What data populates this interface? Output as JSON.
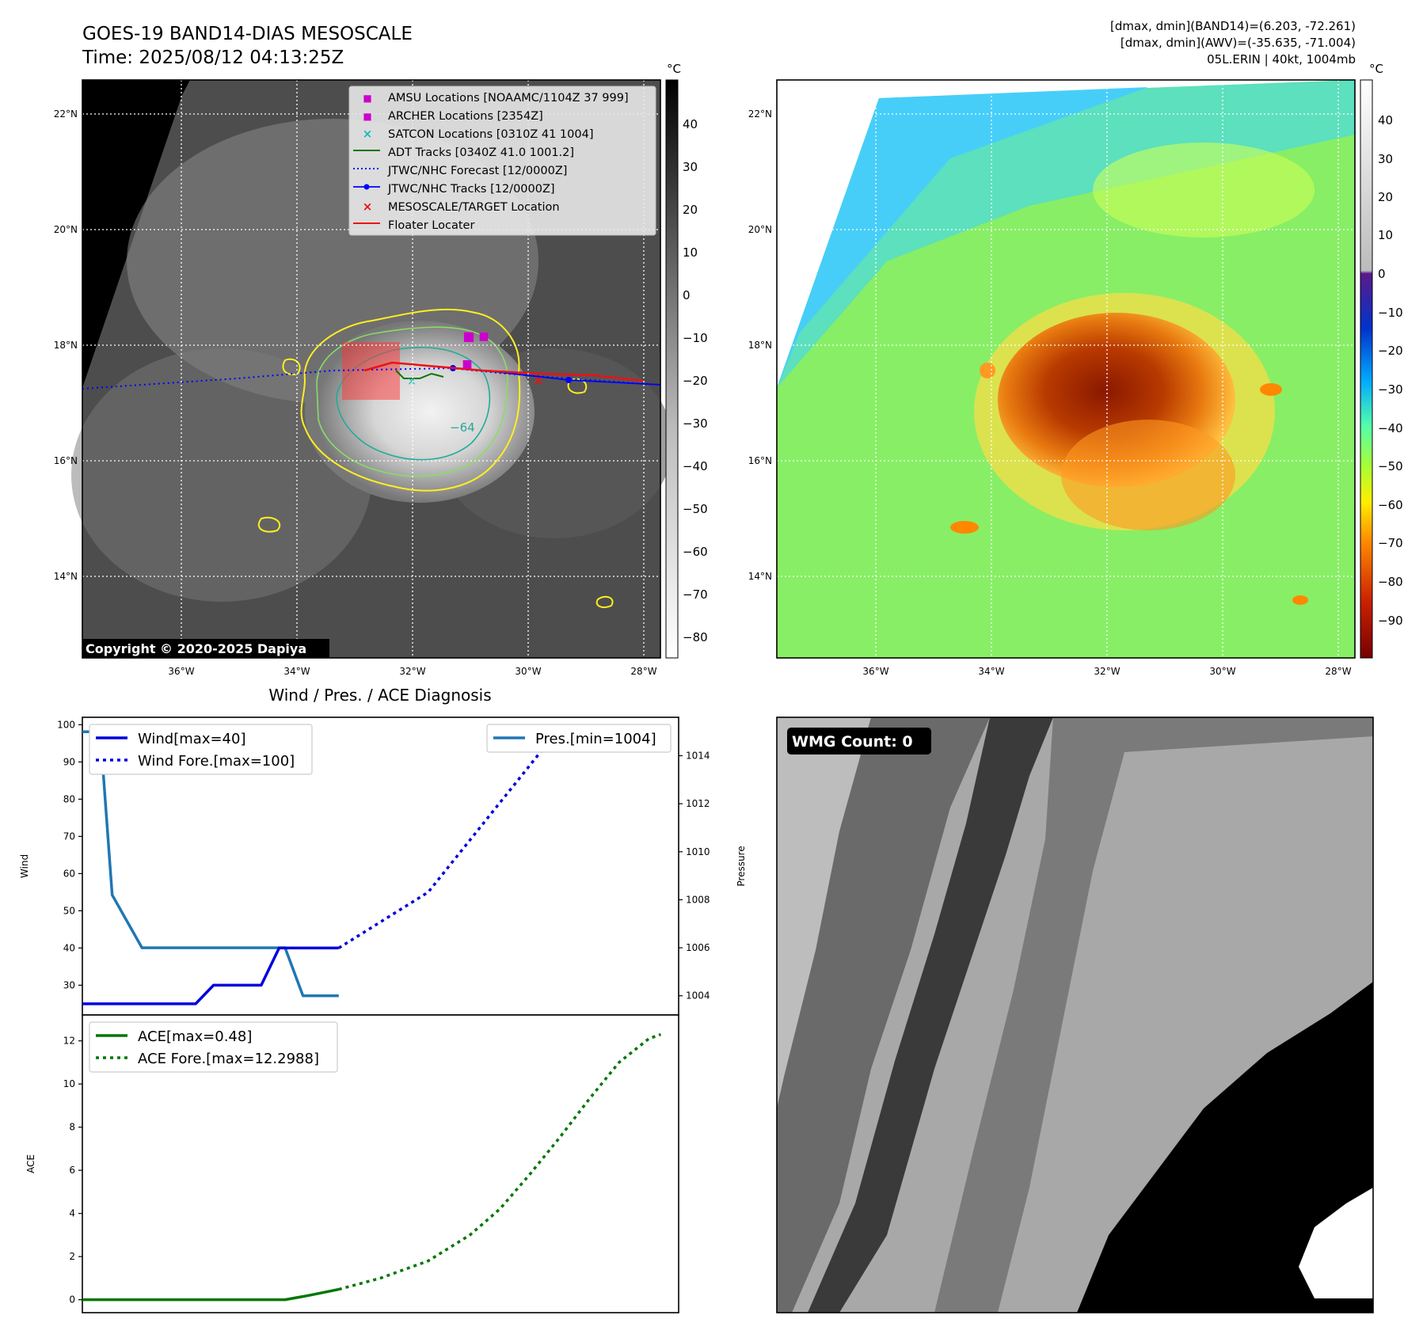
{
  "header": {
    "title_line1": "GOES-19 BAND14-DIAS MESOSCALE",
    "title_line2": "Time: 2025/08/12 04:13:25Z",
    "info_line1": "[dmax, dmin](BAND14)=(6.203, -72.261)",
    "info_line2": "[dmax, dmin](AWV)=(-35.635, -71.004)",
    "info_line3": "05L.ERIN | 40kt, 1004mb"
  },
  "colors": {
    "wind": "#0000dd",
    "pressure": "#1f77b4",
    "ace": "#007700",
    "contour_yellow": "#ffee22",
    "contour_green": "#88dd66",
    "contour_teal": "#22aa99",
    "track_red": "#ee1111",
    "track_blue": "#0000ff",
    "archer_magenta": "#cc00cc",
    "satcon_cyan": "#11bbbb"
  },
  "ir_map": {
    "colorbar_unit": "°C",
    "colorbar_ticks": [
      "40",
      "30",
      "20",
      "10",
      "0",
      "−10",
      "−20",
      "−30",
      "−40",
      "−50",
      "−60",
      "−70",
      "−80"
    ],
    "lat_labels": [
      "22°N",
      "20°N",
      "18°N",
      "16°N",
      "14°N"
    ],
    "lon_labels": [
      "36°W",
      "34°W",
      "32°W",
      "30°W",
      "28°W"
    ],
    "contour_label": "−64",
    "copyright": "Copyright © 2020-2025 Dapiya",
    "legend": [
      {
        "label": "AMSU Locations [NOAAMC/1104Z 37 999]",
        "marker": "square",
        "color": "#cc00cc"
      },
      {
        "label": "ARCHER Locations [2354Z]",
        "marker": "square",
        "color": "#cc00cc"
      },
      {
        "label": "SATCON Locations [0310Z 41 1004]",
        "marker": "x",
        "color": "#11bbbb"
      },
      {
        "label": "ADT Tracks [0340Z 41.0 1001.2]",
        "marker": "line",
        "color": "#007700"
      },
      {
        "label": "JTWC/NHC Forecast [12/0000Z]",
        "marker": "dotted",
        "color": "#0000ff"
      },
      {
        "label": "JTWC/NHC Tracks [12/0000Z]",
        "marker": "line-dot",
        "color": "#0000ff"
      },
      {
        "label": "MESOSCALE/TARGET Location",
        "marker": "x",
        "color": "#ee1111"
      },
      {
        "label": "Floater Locater",
        "marker": "line",
        "color": "#ee1111"
      }
    ]
  },
  "color_map": {
    "colorbar_unit": "°C",
    "colorbar_ticks": [
      "40",
      "30",
      "20",
      "10",
      "0",
      "−10",
      "−20",
      "−30",
      "−40",
      "−50",
      "−60",
      "−70",
      "−80",
      "−90"
    ],
    "lat_labels": [
      "22°N",
      "20°N",
      "18°N",
      "16°N",
      "14°N"
    ],
    "lon_labels": [
      "36°W",
      "34°W",
      "32°W",
      "30°W",
      "28°W"
    ]
  },
  "diagnosis": {
    "title": "Wind / Pres. / ACE Diagnosis",
    "wind_ylabel": "Wind",
    "pressure_ylabel": "Pressure",
    "ace_ylabel": "ACE",
    "legend_wind": "Wind[max=40]",
    "legend_wind_fore": "Wind Fore.[max=100]",
    "legend_pres": "Pres.[min=1004]",
    "legend_ace": "ACE[max=0.48]",
    "legend_ace_fore": "ACE Fore.[max=12.2988]"
  },
  "wmg": {
    "badge": "WMG Count: 0"
  },
  "chart_data": [
    {
      "type": "line",
      "title": "Wind / Pres. / ACE Diagnosis",
      "ylabel": "Wind",
      "ylim": [
        22,
        102
      ],
      "yticks": [
        30,
        40,
        50,
        60,
        70,
        80,
        90,
        100
      ],
      "xlim": [
        0,
        100
      ],
      "series": [
        {
          "name": "Wind[max=40]",
          "style": "solid",
          "x": [
            0,
            5,
            10,
            15,
            19,
            22,
            25,
            27,
            30,
            33,
            36,
            39,
            42,
            43
          ],
          "y": [
            25,
            25,
            25,
            25,
            25,
            30,
            30,
            30,
            30,
            40,
            40,
            40,
            40,
            40
          ]
        },
        {
          "name": "Wind Fore.[max=100]",
          "style": "dotted",
          "x": [
            43,
            48,
            53,
            58,
            63,
            68,
            73,
            77,
            80,
            83,
            86
          ],
          "y": [
            40,
            45,
            50,
            55,
            65,
            75,
            85,
            93,
            93,
            93,
            100
          ]
        }
      ]
    },
    {
      "type": "line",
      "ylabel": "Pressure",
      "ylim": [
        1003.2,
        1015.6
      ],
      "yticks": [
        1004,
        1006,
        1008,
        1010,
        1012,
        1014
      ],
      "xlim": [
        0,
        100
      ],
      "series": [
        {
          "name": "Pres.[min=1004]",
          "style": "solid",
          "x": [
            0,
            3,
            5,
            10,
            15,
            20,
            25,
            30,
            34,
            37,
            40,
            43
          ],
          "y": [
            1015,
            1015,
            1008.2,
            1006,
            1006,
            1006,
            1006,
            1006,
            1006,
            1004,
            1004,
            1004
          ]
        }
      ]
    },
    {
      "type": "line",
      "ylabel": "ACE",
      "ylim": [
        -0.6,
        13.2
      ],
      "yticks": [
        0,
        2,
        4,
        6,
        8,
        10,
        12
      ],
      "xlim": [
        0,
        100
      ],
      "series": [
        {
          "name": "ACE[max=0.48]",
          "style": "solid",
          "x": [
            0,
            10,
            20,
            30,
            34,
            38,
            43
          ],
          "y": [
            0,
            0,
            0,
            0,
            0,
            0.2,
            0.48
          ]
        },
        {
          "name": "ACE Fore.[max=12.2988]",
          "style": "dotted",
          "x": [
            43,
            50,
            58,
            65,
            70,
            75,
            80,
            85,
            90,
            95,
            97
          ],
          "y": [
            0.48,
            1.0,
            1.8,
            3.0,
            4.2,
            5.8,
            7.5,
            9.3,
            11.0,
            12.1,
            12.3
          ]
        }
      ]
    }
  ]
}
